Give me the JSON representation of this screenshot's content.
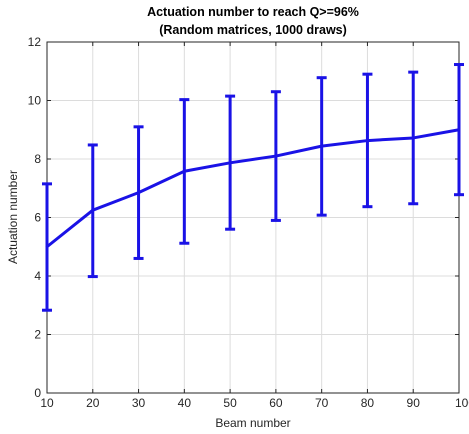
{
  "chart_data": {
    "type": "line",
    "title": [
      "Actuation number to reach Q>=96%",
      "(Random matrices, 1000 draws)"
    ],
    "xlabel": "Beam number",
    "ylabel": "Actuation number",
    "xlim": [
      10,
      100
    ],
    "ylim": [
      0,
      12
    ],
    "xticks": [
      10,
      20,
      30,
      40,
      50,
      60,
      70,
      80,
      90,
      100
    ],
    "yticks": [
      0,
      2,
      4,
      6,
      8,
      10,
      12
    ],
    "grid": true,
    "legend": "none",
    "color": "#1a12e6",
    "series": [
      {
        "x": [
          10,
          20,
          30,
          40,
          50,
          60,
          70,
          80,
          90,
          100
        ],
        "y": [
          5.0,
          6.25,
          6.85,
          7.58,
          7.87,
          8.1,
          8.44,
          8.63,
          8.72,
          9.0
        ],
        "err_low": [
          2.83,
          3.98,
          4.6,
          5.12,
          5.6,
          5.9,
          6.08,
          6.37,
          6.47,
          6.78
        ],
        "err_high": [
          7.15,
          8.48,
          9.1,
          10.03,
          10.15,
          10.3,
          10.78,
          10.9,
          10.97,
          11.23
        ]
      }
    ]
  }
}
